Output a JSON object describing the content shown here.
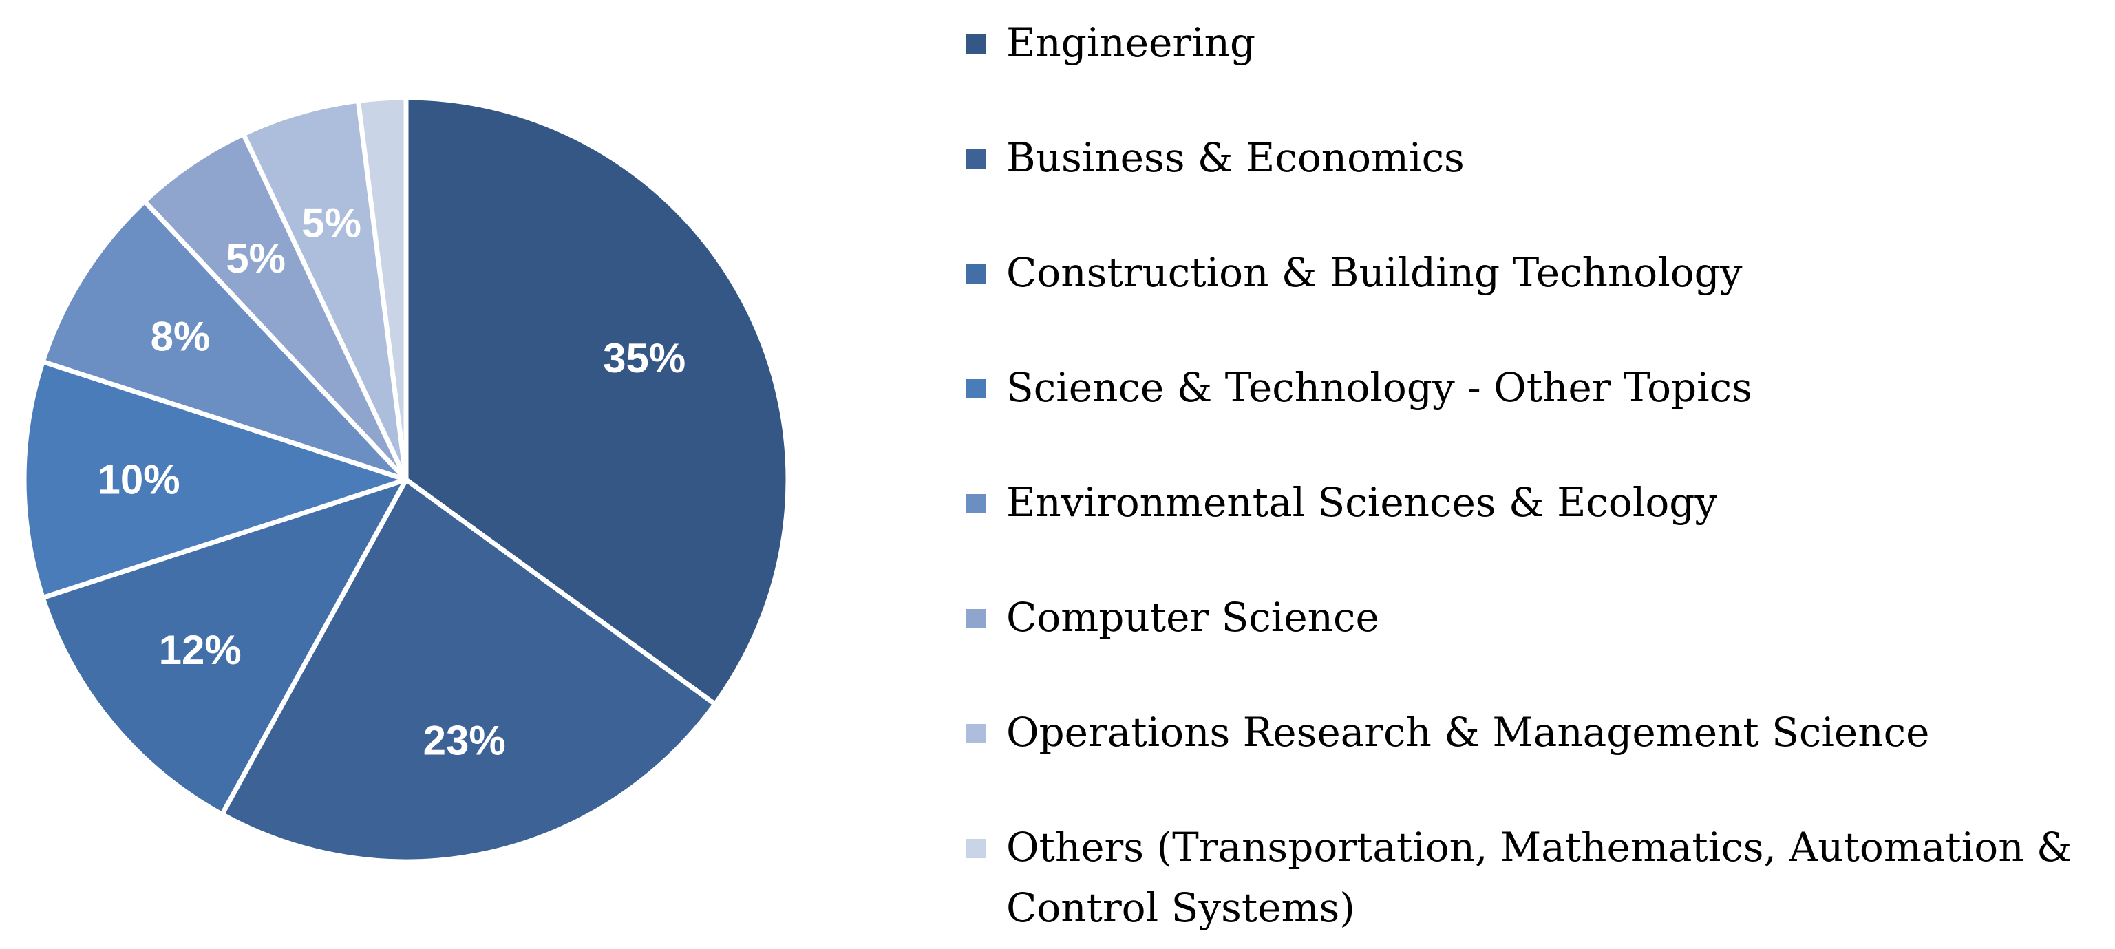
{
  "chart_data": {
    "type": "pie",
    "title": "",
    "start_angle_deg": 0,
    "direction": "clockwise",
    "slices": [
      {
        "label": "Engineering",
        "value": 35,
        "display": "35%",
        "color": "#355785"
      },
      {
        "label": "Business & Economics",
        "value": 23,
        "display": "23%",
        "color": "#3d6396"
      },
      {
        "label": "Construction & Building Technology",
        "value": 12,
        "display": "12%",
        "color": "#426fa8"
      },
      {
        "label": "Science & Technology - Other Topics",
        "value": 10,
        "display": "10%",
        "color": "#4a7cb9"
      },
      {
        "label": "Environmental Sciences & Ecology",
        "value": 8,
        "display": "8%",
        "color": "#6c8fc3"
      },
      {
        "label": "Computer Science",
        "value": 5,
        "display": "5%",
        "color": "#8fa5cd"
      },
      {
        "label": "Operations Research & Management Science",
        "value": 5,
        "display": "5%",
        "color": "#adbedc"
      },
      {
        "label": "Others (Transportation, Mathematics, Automation & Control Systems)",
        "value": 2,
        "display": "",
        "color": "#cad4e7"
      }
    ],
    "legend_position": "right"
  }
}
